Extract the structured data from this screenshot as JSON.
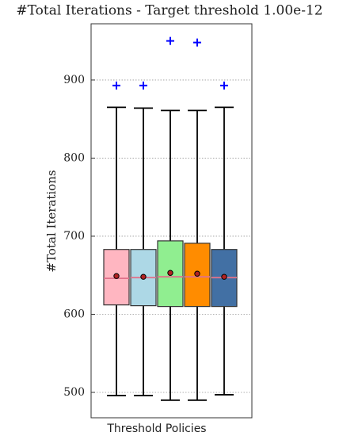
{
  "chart_data": {
    "type": "box",
    "title": "#Total Iterations - Target threshold 1.00e-12",
    "xlabel": "Threshold Policies",
    "ylabel": "#Total Iterations",
    "ylim": [
      467.5,
      972
    ],
    "yticks": [
      500,
      600,
      700,
      800,
      900
    ],
    "grid": true,
    "median_color": "#e0728a",
    "mean_color": "#b22222",
    "outlier_color": "#0000ff",
    "boxes": [
      {
        "color": "#ffb6c1",
        "whisker_low": 496,
        "q1": 612,
        "median": 646,
        "q3": 683,
        "whisker_high": 865,
        "mean": 649,
        "outliers": [
          893
        ]
      },
      {
        "color": "#add8e6",
        "whisker_low": 496,
        "q1": 611,
        "median": 647,
        "q3": 683,
        "whisker_high": 864,
        "mean": 648,
        "outliers": [
          893
        ]
      },
      {
        "color": "#90ee90",
        "whisker_low": 490,
        "q1": 610,
        "median": 648,
        "q3": 694,
        "whisker_high": 861,
        "mean": 653,
        "outliers": [
          950
        ]
      },
      {
        "color": "#ff8c00",
        "whisker_low": 490,
        "q1": 610,
        "median": 648,
        "q3": 691,
        "whisker_high": 861,
        "mean": 652,
        "outliers": [
          948
        ]
      },
      {
        "color": "#4270a4",
        "whisker_low": 497,
        "q1": 610,
        "median": 647,
        "q3": 683,
        "whisker_high": 865,
        "mean": 648,
        "outliers": [
          893
        ]
      }
    ]
  }
}
